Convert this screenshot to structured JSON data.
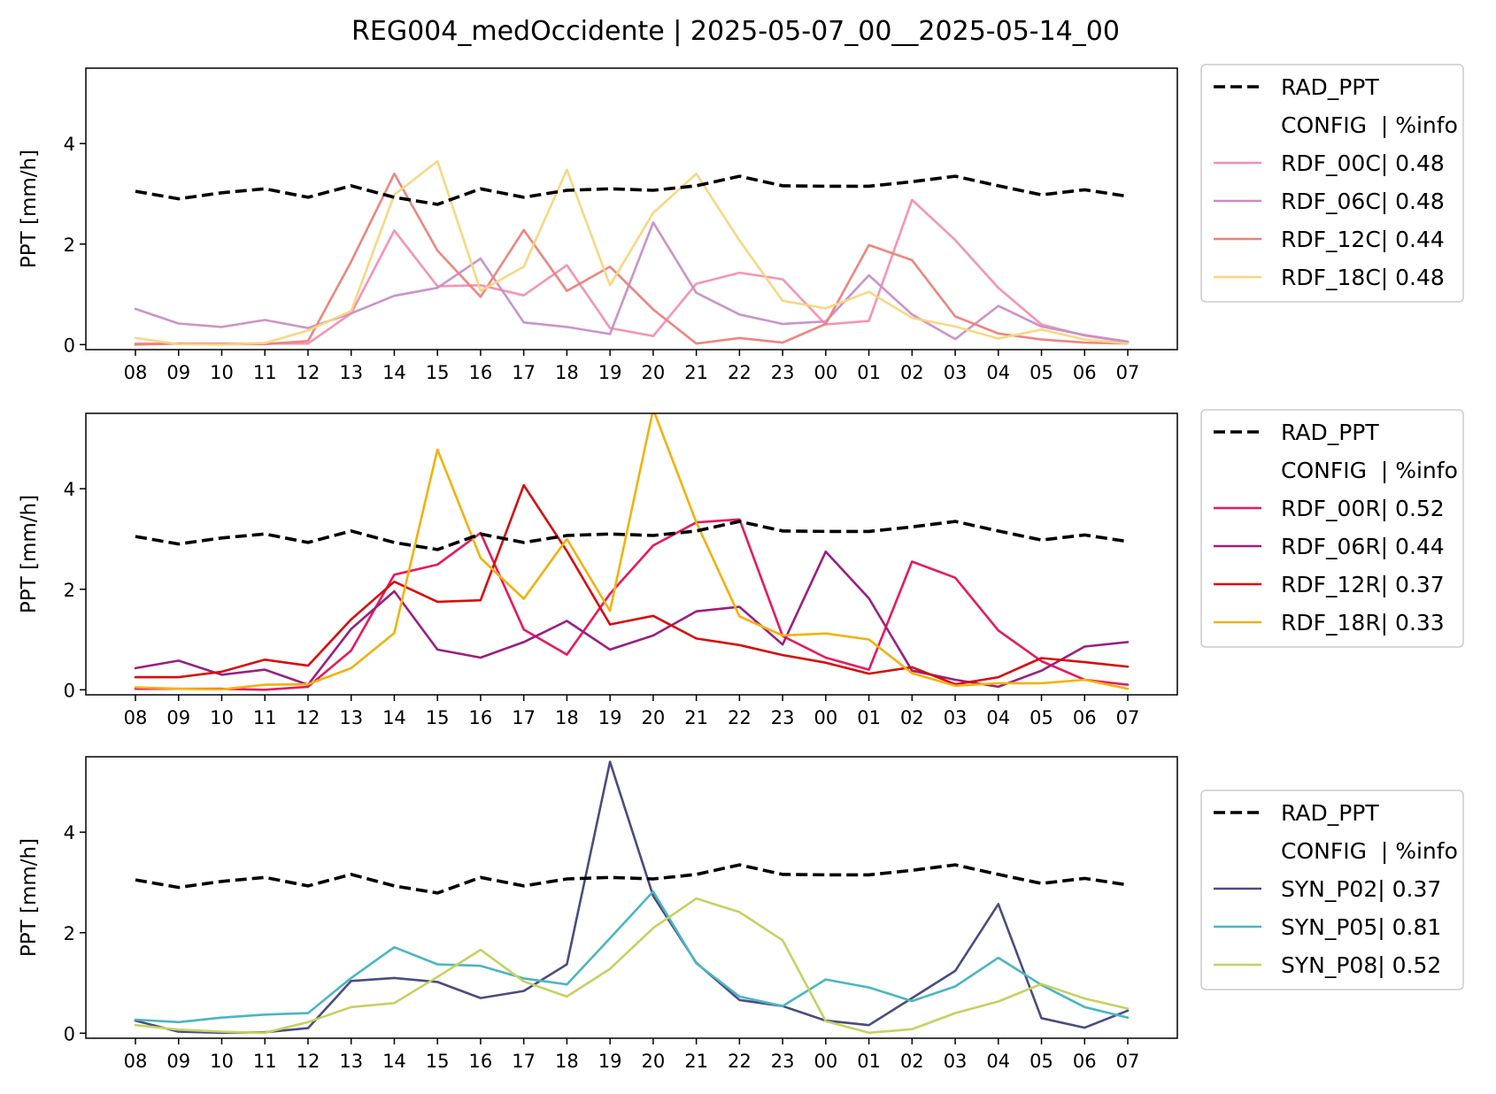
{
  "suptitle": "REG004_medOccidente | 2025-05-07_00__2025-05-14_00",
  "chart_data": [
    {
      "type": "line",
      "ylabel": "PPT [mm/h]",
      "xlabel": "",
      "categories": [
        "08",
        "09",
        "10",
        "11",
        "12",
        "13",
        "14",
        "15",
        "16",
        "17",
        "18",
        "19",
        "20",
        "21",
        "22",
        "23",
        "00",
        "01",
        "02",
        "03",
        "04",
        "05",
        "06",
        "07"
      ],
      "yticks": [
        0,
        2,
        4
      ],
      "ylim": [
        -0.1,
        5.5
      ],
      "legend_position": "outside-right",
      "legend_header": "CONFIG  | %info",
      "series": [
        {
          "name": "RAD_PPT",
          "color": "#000000",
          "dashed": true,
          "values": [
            3.05,
            2.9,
            3.02,
            3.1,
            2.93,
            3.16,
            2.93,
            2.79,
            3.1,
            2.93,
            3.07,
            3.1,
            3.07,
            3.16,
            3.35,
            3.16,
            3.15,
            3.15,
            3.24,
            3.35,
            3.16,
            2.98,
            3.08,
            2.95
          ]
        },
        {
          "name": "RDF_00C| 0.48",
          "color": "#f78eb0",
          "values": [
            0.02,
            0.02,
            0.02,
            0.02,
            0.02,
            0.62,
            2.27,
            1.16,
            1.18,
            0.98,
            1.58,
            0.33,
            0.17,
            1.21,
            1.43,
            1.3,
            0.4,
            0.47,
            2.88,
            2.08,
            1.13,
            0.4,
            0.18,
            0.05
          ]
        },
        {
          "name": "RDF_06C| 0.48",
          "color": "#c88ec6",
          "values": [
            0.71,
            0.42,
            0.35,
            0.49,
            0.33,
            0.62,
            0.97,
            1.13,
            1.71,
            0.44,
            0.35,
            0.21,
            2.43,
            1.03,
            0.6,
            0.41,
            0.46,
            1.38,
            0.6,
            0.11,
            0.77,
            0.36,
            0.19,
            0.06
          ]
        },
        {
          "name": "RDF_12C| 0.44",
          "color": "#ec8079",
          "values": [
            0.0,
            0.02,
            0.01,
            0.01,
            0.07,
            1.65,
            3.4,
            1.87,
            0.95,
            2.28,
            1.07,
            1.55,
            0.7,
            0.02,
            0.13,
            0.04,
            0.41,
            1.98,
            1.68,
            0.56,
            0.22,
            0.1,
            0.04,
            0.02
          ]
        },
        {
          "name": "RDF_18C| 0.48",
          "color": "#f7d67c",
          "values": [
            0.13,
            0.01,
            0.0,
            0.03,
            0.28,
            0.67,
            2.98,
            3.65,
            1.07,
            1.55,
            3.48,
            1.18,
            2.62,
            3.4,
            2.07,
            0.87,
            0.72,
            1.05,
            0.53,
            0.36,
            0.12,
            0.3,
            0.1,
            0.02
          ]
        }
      ]
    },
    {
      "type": "line",
      "ylabel": "PPT [mm/h]",
      "xlabel": "",
      "categories": [
        "08",
        "09",
        "10",
        "11",
        "12",
        "13",
        "14",
        "15",
        "16",
        "17",
        "18",
        "19",
        "20",
        "21",
        "22",
        "23",
        "00",
        "01",
        "02",
        "03",
        "04",
        "05",
        "06",
        "07"
      ],
      "yticks": [
        0,
        2,
        4
      ],
      "ylim": [
        -0.1,
        5.5
      ],
      "legend_position": "outside-right",
      "legend_header": "CONFIG  | %info",
      "series": [
        {
          "name": "RAD_PPT",
          "color": "#000000",
          "dashed": true,
          "values": [
            3.05,
            2.9,
            3.02,
            3.1,
            2.93,
            3.16,
            2.93,
            2.79,
            3.1,
            2.93,
            3.07,
            3.1,
            3.07,
            3.16,
            3.35,
            3.16,
            3.15,
            3.15,
            3.24,
            3.35,
            3.16,
            2.98,
            3.08,
            2.95
          ]
        },
        {
          "name": "RDF_00R| 0.52",
          "color": "#e8195f",
          "values": [
            0.02,
            0.02,
            0.02,
            0.0,
            0.06,
            0.78,
            2.29,
            2.49,
            3.12,
            1.2,
            0.7,
            1.91,
            2.87,
            3.33,
            3.39,
            1.07,
            0.64,
            0.4,
            2.55,
            2.23,
            1.18,
            0.57,
            0.2,
            0.1
          ]
        },
        {
          "name": "RDF_06R| 0.44",
          "color": "#992080",
          "values": [
            0.43,
            0.58,
            0.3,
            0.4,
            0.1,
            1.21,
            1.96,
            0.8,
            0.64,
            0.95,
            1.37,
            0.8,
            1.08,
            1.56,
            1.65,
            0.9,
            2.75,
            1.82,
            0.38,
            0.2,
            0.06,
            0.38,
            0.86,
            0.95
          ]
        },
        {
          "name": "RDF_12R| 0.37",
          "color": "#d90c0c",
          "values": [
            0.25,
            0.25,
            0.36,
            0.6,
            0.48,
            1.4,
            2.15,
            1.75,
            1.78,
            4.07,
            2.76,
            1.3,
            1.47,
            1.02,
            0.89,
            0.69,
            0.54,
            0.32,
            0.45,
            0.11,
            0.25,
            0.63,
            0.55,
            0.46
          ]
        },
        {
          "name": "RDF_18R| 0.33",
          "color": "#f2b20c",
          "values": [
            0.05,
            0.02,
            0.01,
            0.1,
            0.11,
            0.43,
            1.13,
            4.78,
            2.62,
            1.81,
            3.0,
            1.57,
            5.58,
            3.33,
            1.46,
            1.08,
            1.12,
            1.0,
            0.33,
            0.08,
            0.13,
            0.13,
            0.2,
            0.02
          ]
        }
      ]
    },
    {
      "type": "line",
      "ylabel": "PPT [mm/h]",
      "xlabel": "",
      "categories": [
        "08",
        "09",
        "10",
        "11",
        "12",
        "13",
        "14",
        "15",
        "16",
        "17",
        "18",
        "19",
        "20",
        "21",
        "22",
        "23",
        "00",
        "01",
        "02",
        "03",
        "04",
        "05",
        "06",
        "07"
      ],
      "yticks": [
        0,
        2,
        4
      ],
      "ylim": [
        -0.1,
        5.5
      ],
      "legend_position": "outside-right",
      "legend_header": "CONFIG  | %info",
      "series": [
        {
          "name": "RAD_PPT",
          "color": "#000000",
          "dashed": true,
          "values": [
            3.05,
            2.9,
            3.02,
            3.1,
            2.93,
            3.16,
            2.93,
            2.79,
            3.1,
            2.93,
            3.07,
            3.1,
            3.07,
            3.16,
            3.35,
            3.16,
            3.15,
            3.15,
            3.24,
            3.35,
            3.16,
            2.98,
            3.08,
            2.95
          ]
        },
        {
          "name": "SYN_P02| 0.37",
          "color": "#4b4c7f",
          "values": [
            0.25,
            0.03,
            0.01,
            0.02,
            0.1,
            1.04,
            1.1,
            1.02,
            0.7,
            0.84,
            1.37,
            5.4,
            2.73,
            1.4,
            0.66,
            0.54,
            0.25,
            0.16,
            0.7,
            1.24,
            2.57,
            0.3,
            0.11,
            0.45
          ]
        },
        {
          "name": "SYN_P05| 0.81",
          "color": "#4ab6c2",
          "values": [
            0.27,
            0.22,
            0.31,
            0.37,
            0.4,
            1.1,
            1.71,
            1.37,
            1.34,
            1.09,
            0.97,
            1.89,
            2.82,
            1.39,
            0.73,
            0.54,
            1.07,
            0.91,
            0.64,
            0.93,
            1.5,
            0.96,
            0.52,
            0.31
          ]
        },
        {
          "name": "SYN_P08| 0.52",
          "color": "#c6d160",
          "values": [
            0.16,
            0.07,
            0.03,
            0.01,
            0.22,
            0.52,
            0.6,
            1.12,
            1.66,
            1.03,
            0.73,
            1.28,
            2.09,
            2.68,
            2.41,
            1.85,
            0.24,
            0.01,
            0.08,
            0.4,
            0.63,
            0.98,
            0.69,
            0.49
          ]
        }
      ]
    }
  ]
}
